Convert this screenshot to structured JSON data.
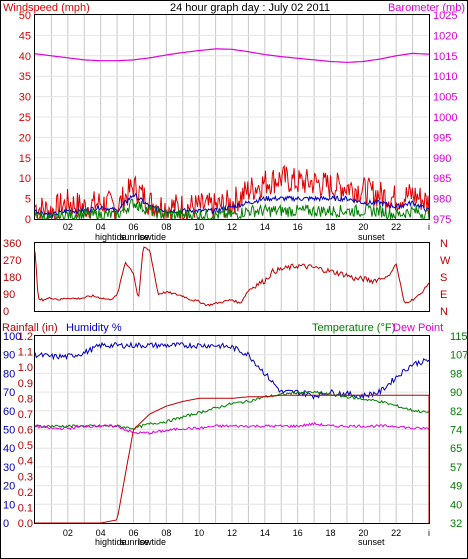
{
  "title": "24 hour graph day : July 02 2011",
  "colors": {
    "wind": "#e00000",
    "gust_blue": "#0000c0",
    "wind_green": "#008000",
    "barometer": "#e000e0",
    "direction": "#c00000",
    "rainfall": "#c00000",
    "humidity": "#0000c0",
    "temperature": "#008000",
    "dewpoint": "#e000e0",
    "grid": "#c8c8c8",
    "frame": "#000000"
  },
  "x_ticks": [
    "02",
    "04",
    "06",
    "08",
    "10",
    "12",
    "14",
    "16",
    "18",
    "20",
    "22",
    "i"
  ],
  "panels": [
    {
      "label_left": "Windspeed (mph)",
      "label_right": "Barometer (mb)",
      "y_left_ticks": [
        "0",
        "5",
        "10",
        "15",
        "20",
        "25",
        "30",
        "35",
        "40",
        "45",
        "50"
      ],
      "y_right_ticks": [
        "975",
        "980",
        "985",
        "990",
        "995",
        "1000",
        "1005",
        "1010",
        "1015",
        "1020",
        "1025"
      ],
      "events": [
        "hightide",
        "sunrise",
        "lowtide",
        "sunset"
      ]
    },
    {
      "y_left_ticks": [
        "0",
        "90",
        "180",
        "270",
        "360"
      ],
      "y_right_ticks": [
        "N",
        "E",
        "S",
        "W",
        "N"
      ]
    },
    {
      "label_left_1": "Rainfall (in)",
      "label_left_2": "Humidity %",
      "label_right_1": "Temperature (°F)",
      "label_right_2": "Dew Point",
      "y_humidity_ticks": [
        "0",
        "10",
        "20",
        "30",
        "40",
        "50",
        "60",
        "70",
        "80",
        "90",
        "100"
      ],
      "y_rain_ticks": [
        "0.0",
        "0.1",
        "0.2",
        "0.3",
        "0.4",
        "0.5",
        "0.6",
        "0.7",
        "0.8",
        "0.9",
        "1.0",
        "1.1",
        "1.2"
      ],
      "y_right_ticks": [
        "32",
        "40",
        "49",
        "57",
        "65",
        "74",
        "82",
        "90",
        "98",
        "107",
        "115"
      ],
      "events": [
        "hightide",
        "sunrise",
        "lowtide",
        "sunset"
      ]
    }
  ],
  "chart_data": [
    {
      "type": "line",
      "x_hours": [
        0,
        1,
        2,
        3,
        4,
        5,
        6,
        7,
        8,
        9,
        10,
        11,
        12,
        13,
        14,
        15,
        16,
        17,
        18,
        19,
        20,
        21,
        22,
        23,
        24
      ],
      "series": [
        {
          "values": [
            3,
            2,
            4,
            3,
            4,
            3,
            8,
            4,
            3,
            3,
            3,
            3,
            4,
            7,
            9,
            10,
            9,
            9,
            8,
            8,
            7,
            6,
            5,
            6,
            4
          ]
        },
        {
          "values": [
            2,
            1,
            2,
            2,
            3,
            2,
            6,
            3,
            2,
            2,
            2,
            2,
            3,
            4,
            5,
            5,
            5,
            5,
            5,
            5,
            4,
            4,
            3,
            4,
            2
          ]
        },
        {
          "values": [
            1,
            0,
            1,
            1,
            1,
            1,
            4,
            2,
            1,
            1,
            1,
            1,
            1,
            2,
            2,
            2,
            2,
            2,
            2,
            2,
            2,
            2,
            1,
            2,
            1
          ]
        },
        {
          "values": [
            1015.5,
            1015.0,
            1014.5,
            1014.0,
            1013.8,
            1013.8,
            1014.0,
            1014.5,
            1015.2,
            1015.8,
            1016.3,
            1016.7,
            1016.6,
            1016.0,
            1015.3,
            1014.8,
            1014.4,
            1014.0,
            1013.6,
            1013.4,
            1013.6,
            1014.2,
            1015.0,
            1015.6,
            1015.4
          ]
        }
      ],
      "ylim": [
        0,
        50
      ],
      "y2lim": [
        975,
        1025
      ],
      "grid": true
    },
    {
      "type": "scatter",
      "x_hours": [
        0,
        0.2,
        0.5,
        1,
        1.5,
        2,
        2.5,
        3,
        3.5,
        4,
        4.5,
        5,
        5.5,
        6,
        6.3,
        6.6,
        7,
        7.5,
        8,
        8.5,
        9,
        9.5,
        10,
        10.5,
        11,
        11.5,
        12,
        12.5,
        13,
        13.5,
        14,
        14.5,
        15,
        15.5,
        16,
        16.5,
        17,
        17.5,
        18,
        18.5,
        19,
        19.5,
        20,
        20.5,
        21,
        21.5,
        22,
        22.5,
        23,
        23.5,
        24
      ],
      "values": [
        320,
        60,
        60,
        70,
        60,
        70,
        65,
        70,
        80,
        70,
        60,
        80,
        260,
        200,
        60,
        340,
        320,
        90,
        100,
        90,
        80,
        60,
        50,
        30,
        40,
        50,
        60,
        40,
        110,
        140,
        160,
        210,
        220,
        230,
        240,
        235,
        230,
        220,
        210,
        200,
        190,
        170,
        170,
        160,
        170,
        180,
        250,
        40,
        60,
        90,
        150
      ],
      "ylim": [
        0,
        360
      ],
      "grid": true
    },
    {
      "type": "line",
      "x_hours": [
        0,
        1,
        2,
        3,
        4,
        5,
        6,
        7,
        8,
        9,
        10,
        11,
        12,
        13,
        14,
        15,
        16,
        17,
        18,
        19,
        20,
        21,
        22,
        23,
        24
      ],
      "series": [
        {
          "values": [
            0,
            0,
            0,
            0,
            0,
            0.02,
            0.6,
            0.7,
            0.75,
            0.78,
            0.8,
            0.8,
            0.8,
            0.81,
            0.81,
            0.82,
            0.82,
            0.82,
            0.82,
            0.82,
            0.82,
            0.82,
            0.82,
            0.82,
            0.82
          ]
        },
        {
          "values": [
            90,
            89,
            89,
            91,
            95,
            95,
            95,
            95,
            95,
            95,
            95,
            95,
            94,
            90,
            80,
            70,
            70,
            68,
            70,
            69,
            68,
            70,
            78,
            85,
            87
          ]
        },
        {
          "values": [
            75,
            75,
            75,
            75,
            75,
            75,
            74,
            76,
            77,
            79,
            81,
            83,
            85,
            86,
            88,
            89,
            90,
            90,
            89,
            88,
            87,
            86,
            84,
            82,
            81
          ]
        },
        {
          "values": [
            75,
            74,
            74,
            75,
            75,
            75,
            72,
            72,
            73,
            74,
            74,
            75,
            75,
            75,
            75,
            75,
            75,
            76,
            75,
            75,
            75,
            75,
            75,
            74,
            74
          ]
        }
      ],
      "ylim": [
        0,
        100
      ],
      "y2lim": [
        32,
        115
      ],
      "grid": true
    }
  ]
}
